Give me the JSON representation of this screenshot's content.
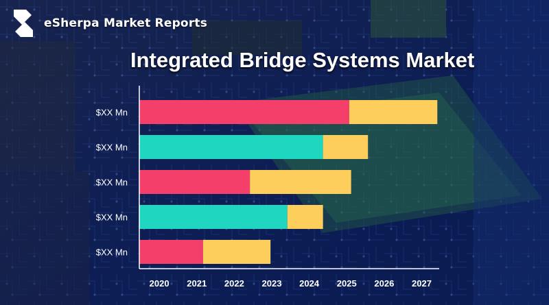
{
  "brand": {
    "name": "eSherpa Market Reports",
    "logo_icon": "esherpa-logo-icon"
  },
  "colors": {
    "series_a": "#f43f6b",
    "series_b_alt": "#1fd6c1",
    "series_c": "#fdce5c",
    "axis": "#ffffff",
    "label": "#ffffff"
  },
  "chart_data": {
    "type": "bar",
    "orientation": "horizontal",
    "stacked": true,
    "title": "Integrated Bridge Systems Market",
    "xlabel": "",
    "ylabel": "",
    "x_ticks": [
      "2020",
      "2021",
      "2022",
      "2023",
      "2024",
      "2025",
      "2026",
      "2027"
    ],
    "xlim": [
      2019.65,
      2027.65
    ],
    "grid": false,
    "legend": "none",
    "categories": [
      "$XX Mn",
      "$XX Mn",
      "$XX Mn",
      "$XX Mn",
      "$XX Mn"
    ],
    "bars": [
      {
        "label": "$XX Mn",
        "start": 2019.65,
        "split": 2025.25,
        "end": 2027.6,
        "first_color": "series_a"
      },
      {
        "label": "$XX Mn",
        "start": 2019.65,
        "split": 2024.55,
        "end": 2025.75,
        "first_color": "series_b_alt"
      },
      {
        "label": "$XX Mn",
        "start": 2019.65,
        "split": 2022.6,
        "end": 2025.3,
        "first_color": "series_a"
      },
      {
        "label": "$XX Mn",
        "start": 2019.65,
        "split": 2023.6,
        "end": 2024.55,
        "first_color": "series_b_alt"
      },
      {
        "label": "$XX Mn",
        "start": 2019.65,
        "split": 2021.35,
        "end": 2023.15,
        "first_color": "series_a"
      }
    ]
  }
}
